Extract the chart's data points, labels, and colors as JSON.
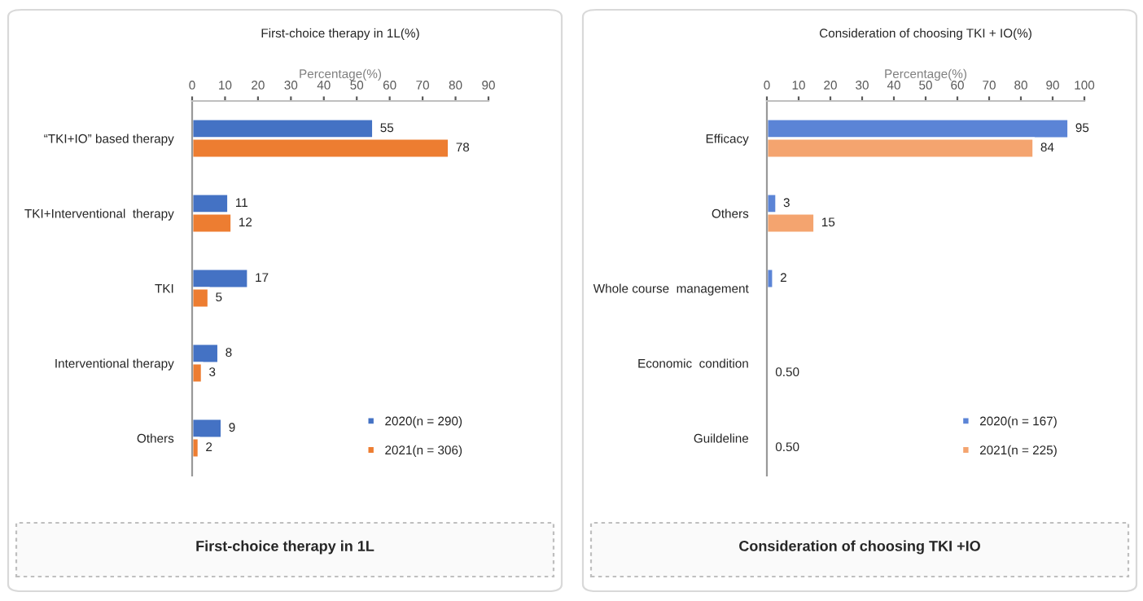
{
  "chart_data": [
    {
      "type": "bar",
      "orientation": "horizontal",
      "title": "First-choice therapy in 1L(%)",
      "xlabel": "Percentage(%)",
      "categories": [
        "“TKI+IO” based therapy",
        "TKI+Interventional  therapy",
        "TKI",
        "Interventional therapy",
        "Others"
      ],
      "series": [
        {
          "name": "2020(n = 290)",
          "color": "#4472c4",
          "values": [
            55,
            11,
            17,
            8,
            9
          ]
        },
        {
          "name": "2021(n = 306)",
          "color": "#ed7d31",
          "values": [
            78,
            12,
            5,
            3,
            2
          ]
        }
      ],
      "xlim": [
        0,
        90
      ],
      "xticks": [
        0,
        10,
        20,
        30,
        40,
        50,
        60,
        70,
        80,
        90
      ],
      "data_labels": true,
      "legend": "bottom right",
      "grid": false,
      "annotations": [
        "First-choice therapy in 1L"
      ]
    },
    {
      "type": "bar",
      "orientation": "horizontal",
      "title": "Consideration of choosing TKI + IO(%)",
      "xlabel": "Percentage(%)",
      "categories": [
        "Efficacy",
        "Others",
        "Whole course  management",
        "Economic  condition",
        "Guildeline"
      ],
      "series": [
        {
          "name": "2020(n = 167)",
          "color": "#5b84d6",
          "values": [
            95,
            3,
            2,
            null,
            null
          ],
          "value_labels": [
            "95",
            "3",
            "2",
            null,
            null
          ]
        },
        {
          "name": "2021(n = 225)",
          "color": "#f4a46f",
          "values": [
            84,
            15,
            null,
            0.5,
            0.5
          ],
          "value_labels": [
            "84",
            "15",
            null,
            "0.50",
            "0.50"
          ]
        }
      ],
      "xlim": [
        0,
        100
      ],
      "xticks": [
        0,
        10,
        20,
        30,
        40,
        50,
        60,
        70,
        80,
        90,
        100
      ],
      "legend": "bottom right",
      "grid": false,
      "annotations": [
        "Consideration of choosing TKI +IO"
      ]
    }
  ]
}
